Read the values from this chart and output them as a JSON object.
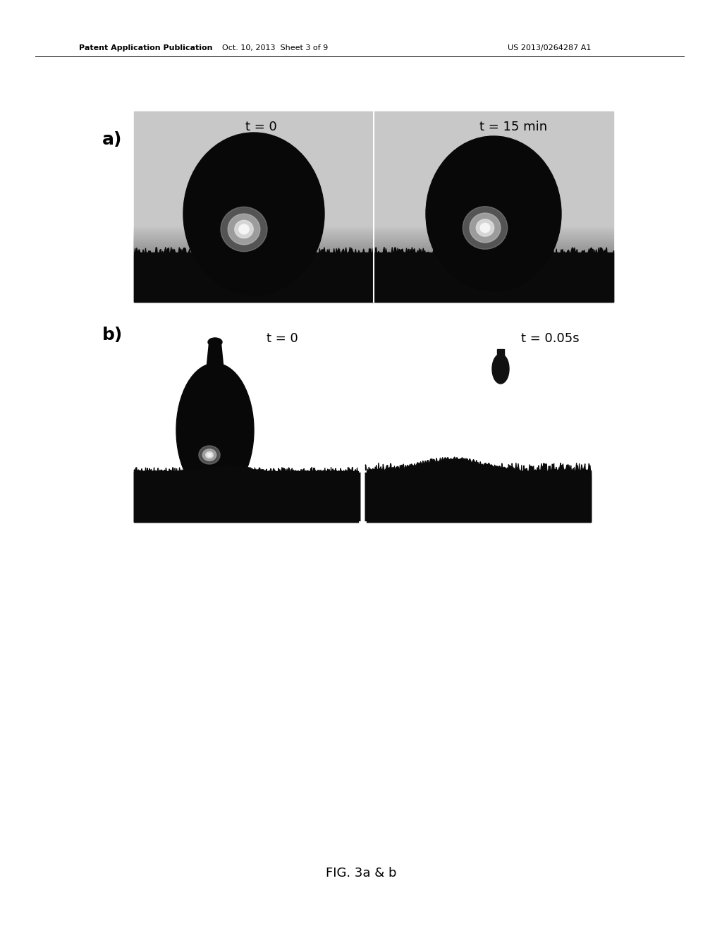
{
  "header_left": "Patent Application Publication",
  "header_mid": "Oct. 10, 2013  Sheet 3 of 9",
  "header_right": "US 2013/0264287 A1",
  "label_a": "a)",
  "label_b": "b)",
  "label_t0_a": "t = 0",
  "label_t15": "t = 15 min",
  "label_t0_b": "t = 0",
  "label_t005": "t = 0.05s",
  "fig_caption": "FIG. 3a & b",
  "bg_color": "#ffffff",
  "panel_a_bg": "#c8c8c8",
  "drop_color": "#080808",
  "surface_color": "#0a0a0a"
}
